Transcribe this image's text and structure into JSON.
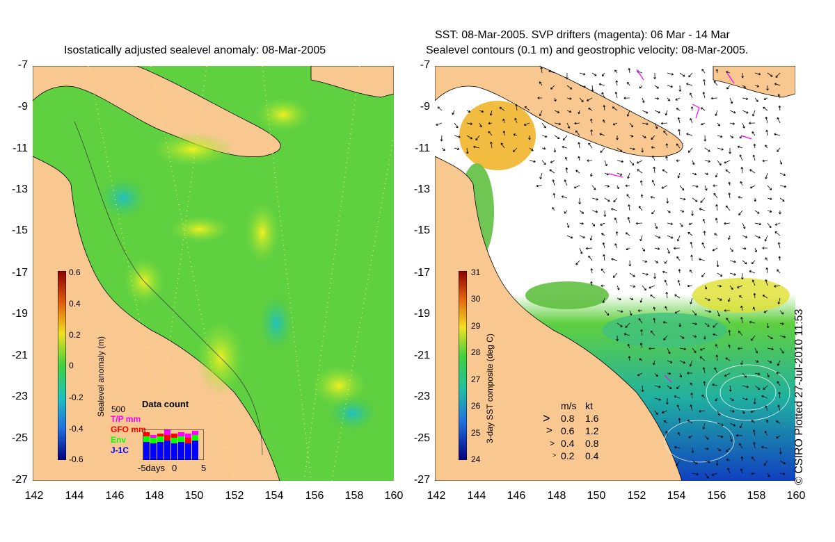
{
  "left_map": {
    "title": "Isostatically adjusted sealevel anomaly: 08-Mar-2005",
    "y_ticks": [
      "-7",
      "-9",
      "-11",
      "-13",
      "-15",
      "-17",
      "-19",
      "-21",
      "-23",
      "-25",
      "-27"
    ],
    "x_ticks": [
      "142",
      "144",
      "146",
      "148",
      "150",
      "152",
      "154",
      "156",
      "158",
      "160"
    ],
    "colorbar": {
      "label": "Sealevel anomaly (m)",
      "ticks": [
        "0.6",
        "0.4",
        "0.2",
        "0",
        "-0.2",
        "-0.4",
        "-0.6"
      ]
    },
    "data_count": {
      "max_label": "500",
      "title": "Data count",
      "series": [
        {
          "name": "T/P mm",
          "color": "#ff00ff"
        },
        {
          "name": "GFO mm",
          "color": "#ff0000"
        },
        {
          "name": "Env",
          "color": "#00ff00"
        },
        {
          "name": "J-1C",
          "color": "#0000ff"
        }
      ],
      "x_labels": [
        "-5days",
        "0",
        "5"
      ]
    }
  },
  "right_map": {
    "title_line1": "SST: 08-Mar-2005. SVP drifters (magenta): 06 Mar - 14 Mar",
    "title_line2": "Sealevel contours (0.1 m) and geostrophic velocity: 08-Mar-2005.",
    "y_ticks": [
      "-7",
      "-9",
      "-11",
      "-13",
      "-15",
      "-17",
      "-19",
      "-21",
      "-23",
      "-25",
      "-27"
    ],
    "x_ticks": [
      "142",
      "144",
      "146",
      "148",
      "150",
      "152",
      "154",
      "156",
      "158",
      "160"
    ],
    "colorbar": {
      "label": "3-day SST composite (deg C)",
      "ticks": [
        "31",
        "30",
        "29",
        "28",
        "27",
        "26",
        "25",
        "24"
      ]
    },
    "velocity_legend": {
      "header_ms": "m/s",
      "header_kt": "kt",
      "rows": [
        {
          "ms": "0.8",
          "kt": "1.6"
        },
        {
          "ms": "0.6",
          "kt": "1.2"
        },
        {
          "ms": "0.4",
          "kt": "0.8"
        },
        {
          "ms": "0.2",
          "kt": "0.4"
        }
      ]
    }
  },
  "credit": "© CSIRO Plotted 27-Jul-2010 11:53",
  "colors": {
    "land": "#f9c891",
    "sea_green": "#5fcf3a",
    "cloud": "#ffffff"
  }
}
